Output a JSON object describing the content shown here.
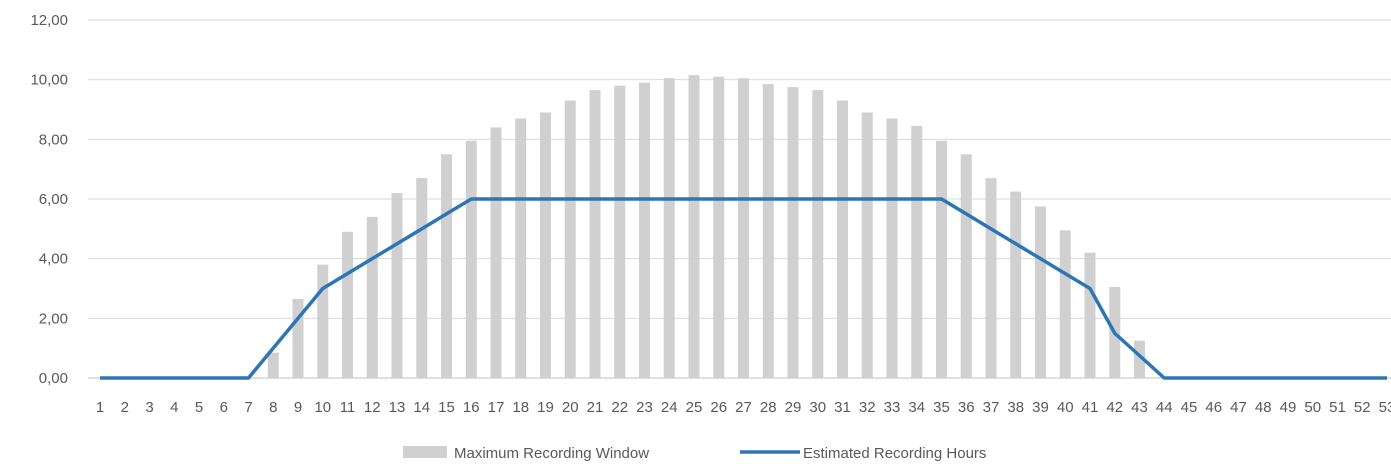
{
  "chart_data": {
    "type": "bar",
    "title": "",
    "xlabel": "",
    "ylabel": "",
    "ylim": [
      0,
      12
    ],
    "y_ticks": [
      "0,00",
      "2,00",
      "4,00",
      "6,00",
      "8,00",
      "10,00",
      "12,00"
    ],
    "grid": "horizontal",
    "legend_position": "bottom",
    "categories": [
      "1",
      "2",
      "3",
      "4",
      "5",
      "6",
      "7",
      "8",
      "9",
      "10",
      "11",
      "12",
      "13",
      "14",
      "15",
      "16",
      "17",
      "18",
      "19",
      "20",
      "21",
      "22",
      "23",
      "24",
      "25",
      "26",
      "27",
      "28",
      "29",
      "30",
      "31",
      "32",
      "33",
      "34",
      "35",
      "36",
      "37",
      "38",
      "39",
      "40",
      "41",
      "42",
      "43",
      "44",
      "45",
      "46",
      "47",
      "48",
      "49",
      "50",
      "51",
      "52",
      "53"
    ],
    "series": [
      {
        "name": "Maximum Recording Window",
        "type": "bar",
        "color": "#d0d0d0",
        "values": [
          0,
          0,
          0,
          0,
          0,
          0,
          0,
          0.85,
          2.65,
          3.8,
          4.9,
          5.4,
          6.2,
          6.7,
          7.5,
          7.95,
          8.4,
          8.7,
          8.9,
          9.3,
          9.65,
          9.8,
          9.9,
          10.05,
          10.15,
          10.1,
          10.05,
          9.85,
          9.75,
          9.65,
          9.3,
          8.9,
          8.7,
          8.45,
          7.95,
          7.5,
          6.7,
          6.25,
          5.75,
          4.95,
          4.2,
          3.05,
          1.25,
          0,
          0,
          0,
          0,
          0,
          0,
          0,
          0,
          0,
          0
        ]
      },
      {
        "name": "Estimated Recording Hours",
        "type": "line",
        "color": "#2e75b6",
        "values": [
          0,
          0,
          0,
          0,
          0,
          0,
          0,
          1.0,
          2.0,
          3.0,
          3.5,
          4.0,
          4.5,
          5.0,
          5.5,
          6.0,
          6.0,
          6.0,
          6.0,
          6.0,
          6.0,
          6.0,
          6.0,
          6.0,
          6.0,
          6.0,
          6.0,
          6.0,
          6.0,
          6.0,
          6.0,
          6.0,
          6.0,
          6.0,
          6.0,
          5.5,
          5.0,
          4.5,
          4.0,
          3.5,
          3.0,
          1.5,
          0.75,
          0,
          0,
          0,
          0,
          0,
          0,
          0,
          0,
          0,
          0
        ]
      }
    ]
  }
}
